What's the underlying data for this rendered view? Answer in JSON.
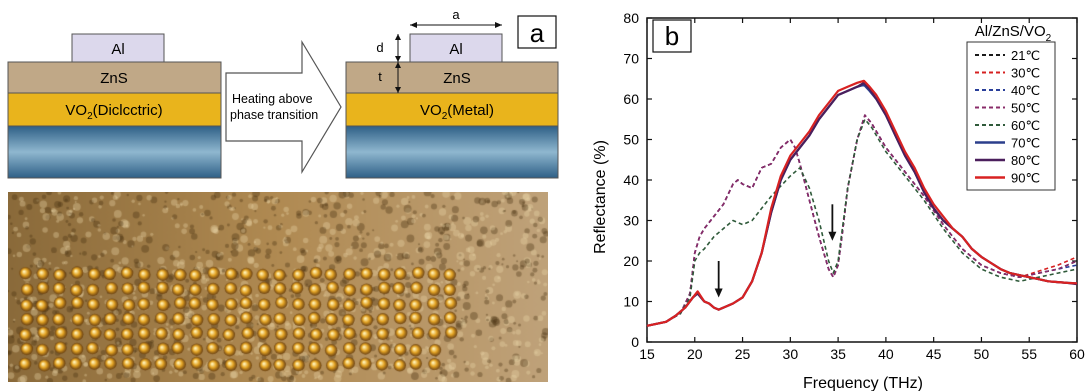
{
  "panel_a": {
    "label": "a",
    "left_stack": {
      "top_layer": "Al",
      "middle_layer": "ZnS",
      "dielectric_prefix": "VO",
      "dielectric_sub": "2",
      "dielectric_suffix": "(Diclcctric)"
    },
    "arrow_text_line1": "Heating above",
    "arrow_text_line2": "phase transition",
    "right_stack": {
      "top_layer": "Al",
      "middle_layer": "ZnS",
      "metal_prefix": "VO",
      "metal_sub": "2",
      "metal_suffix": "(Metal)",
      "dim_a": "a",
      "dim_d": "d",
      "dim_t": "t"
    },
    "colors": {
      "al": "#dcd8ec",
      "zns": "#c0a887",
      "vo2": "#e9b41c",
      "substrate_top": "#2e5f86",
      "substrate_mid": "#8fb7cf"
    }
  },
  "panel_b": {
    "label": "b",
    "legend_title_prefix": "Al/ZnS/VO",
    "legend_title_sub": "2"
  },
  "chart_data": {
    "type": "line",
    "xlabel": "Frequency (THz)",
    "ylabel": "Reflectance (%)",
    "xlim": [
      15,
      60
    ],
    "ylim": [
      0,
      80
    ],
    "xticks": [
      "15",
      "20",
      "25",
      "30",
      "35",
      "40",
      "45",
      "50",
      "55",
      "60"
    ],
    "yticks": [
      "0",
      "10",
      "20",
      "30",
      "40",
      "50",
      "60",
      "70",
      "80"
    ],
    "legend_position": "top-right",
    "arrows": [
      {
        "x": 22.5,
        "y_from": 20,
        "y_to": 11
      },
      {
        "x": 34.4,
        "y_from": 34,
        "y_to": 25
      }
    ],
    "series": [
      {
        "name": "21℃",
        "color": "#1a1a1a",
        "dash": true,
        "x": [
          15,
          17,
          18.5,
          19.5,
          20,
          20.5,
          21,
          22,
          23,
          24,
          24.5,
          25,
          26,
          27,
          28,
          29,
          30,
          30.5,
          31,
          32,
          33,
          34,
          34.5,
          35,
          35.5,
          36,
          37,
          37.8,
          38.5,
          40,
          42,
          44,
          46,
          48,
          50,
          52,
          54,
          56,
          58,
          60
        ],
        "y": [
          4,
          5,
          7,
          12,
          22,
          26,
          28,
          31,
          34,
          39,
          40,
          39,
          38,
          43,
          44,
          48,
          50,
          48,
          44,
          35,
          26,
          18,
          16,
          19,
          28,
          38,
          50,
          56,
          54,
          48,
          42,
          36,
          29,
          23,
          19,
          17,
          16,
          17,
          18,
          20
        ]
      },
      {
        "name": "30℃",
        "color": "#d62020",
        "dash": true,
        "x": [
          15,
          17,
          18.5,
          19.5,
          20,
          20.5,
          21,
          22,
          23,
          24,
          24.5,
          25,
          26,
          27,
          28,
          29,
          30,
          30.5,
          31,
          32,
          33,
          34,
          34.5,
          35,
          35.5,
          36,
          37,
          37.8,
          38.5,
          40,
          42,
          44,
          46,
          48,
          50,
          52,
          54,
          56,
          58,
          60
        ],
        "y": [
          4,
          5,
          7,
          12,
          22,
          26,
          28,
          31,
          34,
          39,
          40,
          39,
          38,
          43,
          44,
          48,
          50,
          48,
          44,
          35,
          26,
          18,
          16,
          19,
          28,
          38,
          50,
          56,
          54,
          48,
          42,
          36,
          29,
          23,
          19,
          17,
          16,
          17.5,
          19,
          21
        ]
      },
      {
        "name": "40℃",
        "color": "#2a3f9a",
        "dash": true,
        "x": [
          15,
          17,
          18.5,
          19.5,
          20,
          20.5,
          21,
          22,
          23,
          24,
          24.5,
          25,
          26,
          27,
          28,
          29,
          30,
          30.5,
          31,
          32,
          33,
          34,
          34.5,
          35,
          35.5,
          36,
          37,
          37.8,
          38.5,
          40,
          42,
          44,
          46,
          48,
          50,
          52,
          54,
          56,
          58,
          60
        ],
        "y": [
          4,
          5,
          7,
          12,
          22,
          26,
          28,
          31,
          34,
          39,
          40,
          39,
          38,
          43,
          44,
          48,
          50,
          48,
          44,
          35,
          26,
          18,
          16,
          19,
          28,
          38,
          50,
          56,
          54,
          48,
          42,
          36,
          29,
          23,
          19,
          17,
          16,
          17,
          18,
          19
        ]
      },
      {
        "name": "50℃",
        "color": "#8a2c6a",
        "dash": true,
        "x": [
          15,
          17,
          18.5,
          19.5,
          20,
          20.5,
          21,
          22,
          23,
          24,
          24.5,
          25,
          26,
          27,
          28,
          29,
          30,
          30.5,
          31,
          32,
          33,
          34,
          34.5,
          35,
          35.5,
          36,
          37,
          37.8,
          38.5,
          40,
          42,
          44,
          46,
          48,
          50,
          52,
          54,
          56,
          58,
          60
        ],
        "y": [
          4,
          5,
          7,
          12,
          22,
          26,
          28,
          31,
          34,
          39,
          40,
          39,
          38,
          43,
          44,
          48,
          50,
          48,
          44,
          35,
          26,
          18,
          16,
          19,
          28,
          38,
          50,
          56,
          54,
          48,
          42,
          36,
          29,
          23,
          19,
          17,
          16,
          17,
          18,
          20
        ]
      },
      {
        "name": "60℃",
        "color": "#2f5a3a",
        "dash": true,
        "x": [
          15,
          17,
          18.5,
          19.5,
          20,
          20.5,
          21,
          22,
          24,
          25,
          26,
          27,
          28,
          30,
          31,
          32,
          33,
          34,
          34.5,
          35,
          35.5,
          36,
          37,
          37.8,
          38.5,
          40,
          42,
          44,
          46,
          48,
          50,
          52,
          54,
          56,
          58,
          60
        ],
        "y": [
          4,
          5,
          7,
          11,
          20,
          22,
          23,
          26,
          30,
          29,
          30,
          33,
          36,
          41,
          43,
          38,
          30,
          20,
          17,
          20,
          29,
          38,
          50,
          55,
          53,
          47,
          41,
          35,
          28,
          22,
          18,
          16,
          15,
          16,
          17,
          18
        ]
      },
      {
        "name": "70℃",
        "color": "#2b3f8c",
        "dash": false,
        "x": [
          15,
          17,
          18,
          19,
          19.8,
          20.3,
          21,
          21.5,
          22,
          22.5,
          23,
          24,
          25,
          26,
          27,
          28,
          29,
          30,
          31,
          32,
          33,
          34,
          35,
          36,
          37,
          37.7,
          38.3,
          39,
          40,
          41,
          42,
          43,
          44,
          45,
          46,
          47,
          48,
          49,
          50,
          51,
          52,
          53,
          54,
          55,
          56,
          57,
          58,
          59,
          60
        ],
        "y": [
          4,
          5,
          6.5,
          8.5,
          11,
          12,
          10,
          9.5,
          8.5,
          8,
          8.5,
          9.5,
          11,
          15,
          22,
          32,
          40,
          45,
          48,
          51,
          55,
          58,
          61,
          62,
          63,
          63.5,
          62,
          60,
          56,
          51,
          46,
          42,
          37,
          33,
          30,
          28,
          26,
          23,
          21,
          19.5,
          18,
          17,
          16.5,
          16,
          15.5,
          15,
          14.8,
          14.6,
          14.5
        ]
      },
      {
        "name": "80℃",
        "color": "#4b1f5c",
        "dash": false,
        "x": [
          15,
          17,
          18,
          19,
          19.8,
          20.3,
          21,
          21.5,
          22,
          22.5,
          23,
          24,
          25,
          26,
          27,
          28,
          29,
          30,
          31,
          32,
          33,
          34,
          35,
          36,
          37,
          37.7,
          38.3,
          39,
          40,
          41,
          42,
          43,
          44,
          45,
          46,
          47,
          48,
          49,
          50,
          51,
          52,
          53,
          54,
          55,
          56,
          57,
          58,
          59,
          60
        ],
        "y": [
          4,
          5,
          6.5,
          8.5,
          11,
          12,
          10,
          9.5,
          8.5,
          8,
          8.5,
          9.5,
          11,
          15,
          22,
          32,
          40,
          45,
          48,
          51,
          55,
          58,
          61,
          62,
          63,
          64,
          62.5,
          60,
          56,
          51,
          46,
          42,
          37,
          33,
          30,
          28,
          26,
          23,
          21,
          19.5,
          18,
          17,
          16.5,
          16,
          15.5,
          15,
          14.8,
          14.6,
          14.3
        ]
      },
      {
        "name": "90℃",
        "color": "#d82222",
        "dash": false,
        "x": [
          15,
          17,
          18,
          19,
          19.8,
          20.3,
          21,
          21.5,
          22,
          22.5,
          23,
          24,
          25,
          26,
          27,
          28,
          29,
          30,
          31,
          32,
          33,
          34,
          35,
          36,
          37,
          37.7,
          38.3,
          39,
          40,
          41,
          42,
          43,
          44,
          45,
          46,
          47,
          48,
          49,
          50,
          51,
          52,
          53,
          54,
          55,
          56,
          57,
          58,
          59,
          60
        ],
        "y": [
          4,
          5,
          6.5,
          8.5,
          11,
          12.5,
          10,
          9.5,
          8.5,
          8,
          8.5,
          9.5,
          11,
          15,
          22,
          33,
          41,
          46,
          49,
          52,
          56,
          59,
          62,
          63,
          64,
          64.5,
          63,
          61,
          57,
          52,
          47,
          43,
          38,
          34,
          31,
          28,
          26,
          23,
          21,
          19.5,
          18,
          17,
          16.5,
          16,
          15.5,
          15,
          14.8,
          14.6,
          14.5
        ]
      }
    ]
  }
}
